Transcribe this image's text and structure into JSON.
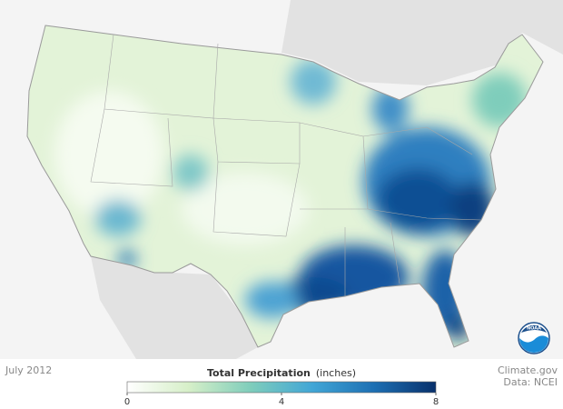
{
  "date": "July 2012",
  "legend": {
    "title": "Total Precipitation",
    "unit": "(inches)",
    "min": 0,
    "max": 8,
    "ticks": [
      0,
      4,
      8
    ],
    "colors": [
      "#ffffff",
      "#d6efc8",
      "#7fcdbb",
      "#41a6d6",
      "#1d6fb3",
      "#08306b"
    ]
  },
  "credit": {
    "site": "Climate.gov",
    "source": "Data: NCEI"
  },
  "logo": "NOAA"
}
